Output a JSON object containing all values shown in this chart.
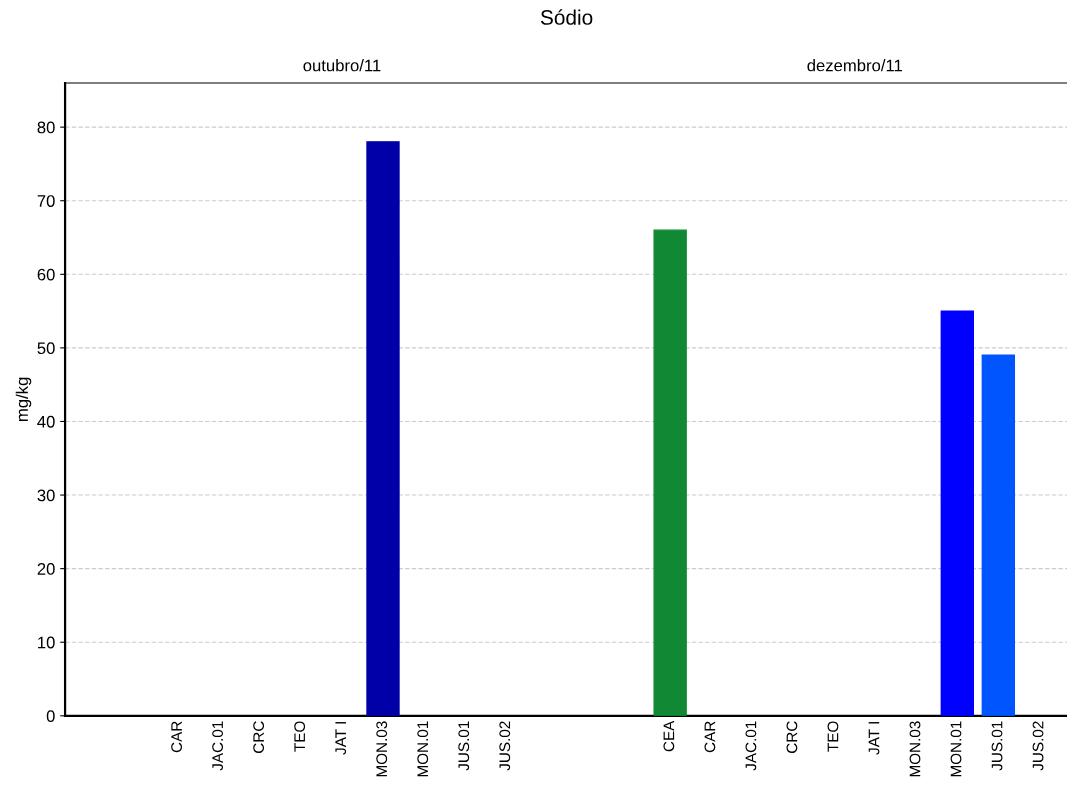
{
  "chart_data": {
    "type": "bar",
    "title": "Sódio",
    "ylabel": "mg/kg",
    "categories": [
      null,
      "CAR",
      "JAC.01",
      "CRC",
      "TEO",
      "JAT I",
      "MON.03",
      "MON.01",
      "JUS.01",
      "JUS.02",
      null,
      null,
      null,
      "CEA",
      "CAR",
      "JAC.01",
      "CRC",
      "TEO",
      "JAT I",
      "MON.03",
      "MON.01",
      "JUS.01",
      "JUS.02"
    ],
    "values": [
      null,
      null,
      null,
      null,
      null,
      null,
      78,
      null,
      null,
      null,
      null,
      null,
      null,
      66,
      null,
      null,
      null,
      null,
      null,
      null,
      55,
      49,
      null
    ],
    "colors": [
      null,
      null,
      null,
      null,
      null,
      null,
      "#0000a8",
      null,
      null,
      null,
      null,
      null,
      null,
      "#118833",
      null,
      null,
      null,
      null,
      null,
      null,
      "#0000ff",
      "#0055ff",
      null
    ],
    "annotations": [
      "outubro/11",
      "dezembro/11"
    ],
    "ylim": [
      0,
      86
    ],
    "yticks": [
      0,
      10,
      20,
      30,
      40,
      50,
      60,
      70,
      80
    ],
    "grid": "y"
  }
}
